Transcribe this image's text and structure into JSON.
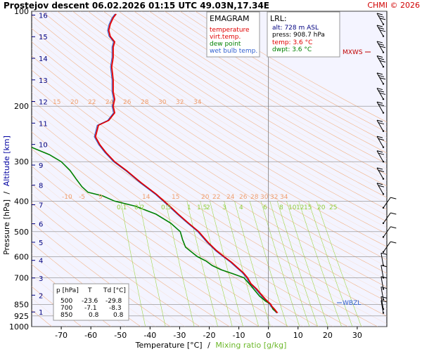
{
  "header": {
    "title": "Prostejov   descent   06.02.2026 01:15 UTC  49.03N,17.34E",
    "credit": "CHMI © 2026"
  },
  "legend": {
    "title": "EMAGRAM",
    "items": [
      {
        "label": "temperature",
        "color": "#e00000"
      },
      {
        "label": "virt.temp.",
        "color": "#e00000"
      },
      {
        "label": "dew point",
        "color": "#008000"
      },
      {
        "label": "wet bulb temp.",
        "color": "#3060d0"
      }
    ]
  },
  "lrl": {
    "title": "LRL:",
    "alt": "alt: 728 m ASL",
    "press": "press: 908.7 hPa",
    "temp": "temp: 3.6 °C",
    "dwpt": "dwpt: 3.6 °C",
    "alt_color": "#000080",
    "temp_color": "#e00000",
    "dwpt_color": "#008000"
  },
  "levels": {
    "mxws": "MXWS",
    "wbzl": "WBZL"
  },
  "table": {
    "headers": [
      "p [hPa]",
      "T",
      "Td [°C]"
    ],
    "rows": [
      [
        "500",
        "-23.6",
        "-29.8"
      ],
      [
        "700",
        "-7.1",
        "-8.3"
      ],
      [
        "850",
        "0.8",
        "0.8"
      ]
    ]
  },
  "axes": {
    "xlabel": "Temperature [°C]",
    "xlabel_sep": "/",
    "xlabel2": "Mixing ratio [g/kg]",
    "ylabel": "Pressure [hPa]",
    "ylabel_sep": "/",
    "ylabel2": "Altitude [km]"
  },
  "chart_data": {
    "type": "line",
    "title": "Prostejov   descent   06.02.2026 01:15 UTC  49.03N,17.34E",
    "xlabel": "Temperature [°C] / Mixing ratio [g/kg]",
    "ylabel": "Pressure [hPa] / Altitude [km]",
    "xlim": [
      -80,
      40
    ],
    "ylim": [
      1000,
      100
    ],
    "y_scale": "log",
    "grid": true,
    "x_ticks": [
      -70,
      -60,
      -50,
      -40,
      -30,
      -20,
      -10,
      0,
      10,
      20,
      30
    ],
    "y_ticks": [
      100,
      200,
      300,
      400,
      500,
      600,
      700,
      850,
      925,
      1000
    ],
    "altitude_ticks_km": [
      1,
      2,
      3,
      4,
      5,
      6,
      7,
      8,
      9,
      10,
      11,
      12,
      13,
      14,
      15,
      16
    ],
    "dry_adiabat_labels_upper": [
      "15",
      "20",
      "22",
      "24",
      "26",
      "28",
      "30",
      "32",
      "34"
    ],
    "dry_adiabat_labels_lower": [
      "-10",
      "-5",
      "9",
      "14",
      "15",
      "20",
      "22",
      "24",
      "26",
      "28",
      "30",
      "32",
      "34"
    ],
    "mixing_ratio_labels": [
      "0.1",
      "0.2",
      "0.5",
      "1",
      "1.5",
      "2",
      "3",
      "4",
      "6",
      "8",
      "10",
      "12",
      "15",
      "20",
      "25"
    ],
    "series": [
      {
        "name": "temperature",
        "color": "#e00000",
        "points": [
          [
            3.0,
            905
          ],
          [
            2.0,
            880
          ],
          [
            1.0,
            860
          ],
          [
            0.8,
            850
          ],
          [
            -1.0,
            820
          ],
          [
            -2.5,
            790
          ],
          [
            -4.0,
            760
          ],
          [
            -6.0,
            730
          ],
          [
            -7.1,
            700
          ],
          [
            -8.5,
            675
          ],
          [
            -10.5,
            650
          ],
          [
            -12.5,
            625
          ],
          [
            -15.0,
            600
          ],
          [
            -17.5,
            575
          ],
          [
            -20.5,
            540
          ],
          [
            -23.6,
            500
          ],
          [
            -27.0,
            470
          ],
          [
            -30.5,
            440
          ],
          [
            -34.0,
            410
          ],
          [
            -38.0,
            380
          ],
          [
            -43.0,
            350
          ],
          [
            -48.0,
            320
          ],
          [
            -52.0,
            300
          ],
          [
            -55.0,
            280
          ],
          [
            -57.0,
            265
          ],
          [
            -58.5,
            250
          ],
          [
            -58.0,
            240
          ],
          [
            -57.5,
            230
          ],
          [
            -54.0,
            222
          ],
          [
            -52.0,
            210
          ],
          [
            -52.5,
            200
          ],
          [
            -52.0,
            190
          ],
          [
            -52.5,
            180
          ],
          [
            -52.5,
            165
          ],
          [
            -53.0,
            150
          ],
          [
            -52.5,
            140
          ],
          [
            -52.5,
            130
          ],
          [
            -52.0,
            125
          ],
          [
            -53.5,
            120
          ],
          [
            -54.0,
            115
          ],
          [
            -53.5,
            110
          ],
          [
            -52.5,
            105
          ],
          [
            -51.5,
            102
          ]
        ]
      },
      {
        "name": "dew point",
        "color": "#008000",
        "points": [
          [
            3.0,
            905
          ],
          [
            1.5,
            880
          ],
          [
            0.8,
            850
          ],
          [
            -1.0,
            830
          ],
          [
            -3.0,
            800
          ],
          [
            -4.5,
            770
          ],
          [
            -6.0,
            740
          ],
          [
            -8.3,
            700
          ],
          [
            -12.0,
            680
          ],
          [
            -16.0,
            660
          ],
          [
            -19.0,
            640
          ],
          [
            -21.0,
            620
          ],
          [
            -24.0,
            600
          ],
          [
            -26.0,
            580
          ],
          [
            -28.0,
            560
          ],
          [
            -29.0,
            530
          ],
          [
            -29.8,
            500
          ],
          [
            -33.0,
            470
          ],
          [
            -38.0,
            440
          ],
          [
            -45.0,
            415
          ],
          [
            -52.0,
            400
          ],
          [
            -56.0,
            385
          ],
          [
            -61.0,
            375
          ],
          [
            -63.0,
            360
          ],
          [
            -65.0,
            340
          ],
          [
            -67.0,
            320
          ],
          [
            -70.0,
            300
          ],
          [
            -74.0,
            285
          ],
          [
            -78.0,
            275
          ],
          [
            -80.0,
            270
          ]
        ]
      }
    ],
    "annotations": [
      {
        "text": "MXWS",
        "pressure": 150
      },
      {
        "text": "WBZL",
        "pressure": 835
      }
    ]
  }
}
